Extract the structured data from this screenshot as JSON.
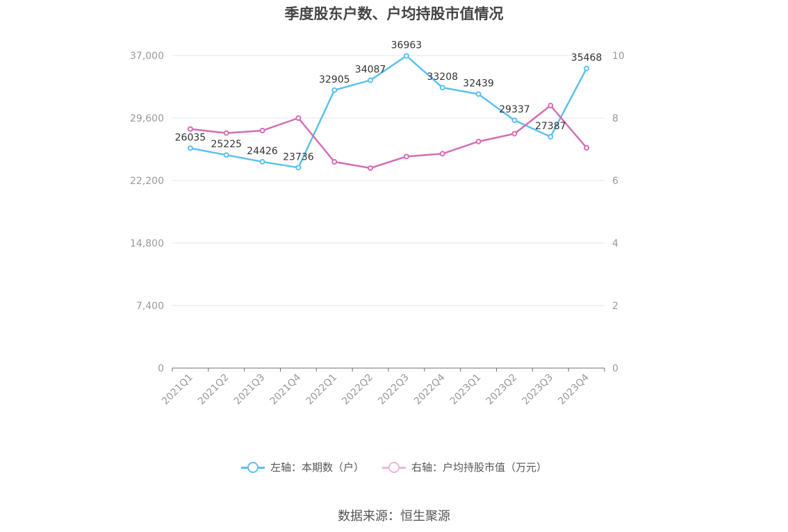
{
  "chart_data": {
    "type": "line",
    "title": "季度股东户数、户均持股市值情况",
    "categories": [
      "2021Q1",
      "2021Q2",
      "2021Q3",
      "2021Q4",
      "2022Q1",
      "2022Q2",
      "2022Q3",
      "2022Q4",
      "2023Q1",
      "2023Q2",
      "2023Q3",
      "2023Q4"
    ],
    "left_axis": {
      "ticks": [
        "0",
        "7,400",
        "14,800",
        "22,200",
        "29,600",
        "37,000"
      ],
      "ylim": [
        0,
        37000
      ]
    },
    "right_axis": {
      "ticks": [
        "0",
        "2",
        "4",
        "6",
        "8",
        "10"
      ],
      "ylim": [
        0,
        10
      ]
    },
    "grid": true,
    "legend_position": "bottom",
    "series": [
      {
        "name": "左轴：本期数（户）",
        "axis": "left",
        "color": "#5BC0F0",
        "values": [
          26035,
          25225,
          24426,
          23736,
          32905,
          34087,
          36963,
          33208,
          32439,
          29337,
          27387,
          35468
        ],
        "labels": [
          "26035",
          "25225",
          "24426",
          "23736",
          "32905",
          "34087",
          "36963",
          "33208",
          "32439",
          "29337",
          "27387",
          "35468"
        ]
      },
      {
        "name": "右轴：户均持股市值（万元）",
        "axis": "right",
        "color": "#D46CB6",
        "values": [
          7.65,
          7.52,
          7.6,
          8.0,
          6.6,
          6.4,
          6.77,
          6.86,
          7.25,
          7.5,
          8.4,
          7.05
        ]
      }
    ],
    "source": "数据来源：恒生聚源"
  }
}
